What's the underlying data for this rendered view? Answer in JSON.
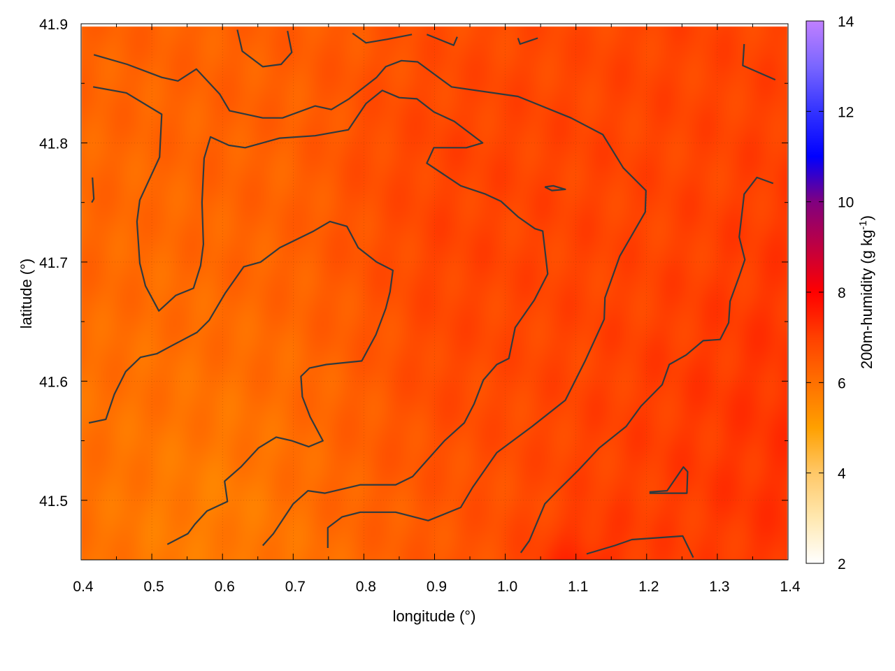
{
  "chart_data": {
    "type": "heatmap",
    "title": "",
    "xlabel": "longitude (°)",
    "ylabel": "latitude (°)",
    "colorbar_label": "200m-humidity (g kg",
    "colorbar_label_sup": "-1",
    "colorbar_label_end": ")",
    "xlim": [
      0.4,
      1.4
    ],
    "ylim": [
      41.45,
      41.9
    ],
    "clim": [
      2,
      14
    ],
    "xticks": [
      "0.4",
      "0.5",
      "0.6",
      "0.7",
      "0.8",
      "0.9",
      "1.0",
      "1.1",
      "1.2",
      "1.3",
      "1.4"
    ],
    "yticks": [
      "41.5",
      "41.6",
      "41.7",
      "41.8",
      "41.9"
    ],
    "cticks": [
      "2",
      "4",
      "6",
      "8",
      "10",
      "12",
      "14"
    ],
    "grid": true,
    "colormap": [
      [
        2,
        "#ffffff"
      ],
      [
        3,
        "#ffe8b0"
      ],
      [
        4,
        "#ffc868"
      ],
      [
        5,
        "#ffa000"
      ],
      [
        6,
        "#ff7000"
      ],
      [
        7,
        "#ff4000"
      ],
      [
        8,
        "#ff0000"
      ],
      [
        9,
        "#c00040"
      ],
      [
        10,
        "#800080"
      ],
      [
        11,
        "#0000ff"
      ],
      [
        12,
        "#3333ff"
      ],
      [
        13,
        "#7a66ff"
      ],
      [
        14,
        "#c080ff"
      ]
    ],
    "contour_color": "#2f3a3f",
    "z_lon": [
      0.4,
      0.5,
      0.6,
      0.7,
      0.8,
      0.9,
      1.0,
      1.1,
      1.2,
      1.3,
      1.4
    ],
    "z_lat": [
      41.9,
      41.8,
      41.7,
      41.6,
      41.5,
      41.45
    ],
    "z": [
      [
        6.3,
        6.3,
        6.3,
        6.4,
        6.5,
        6.7,
        6.8,
        6.8,
        6.9,
        6.9,
        6.9
      ],
      [
        6.2,
        6.2,
        6.3,
        6.3,
        6.7,
        6.9,
        6.9,
        6.9,
        6.9,
        6.9,
        7.0
      ],
      [
        6.2,
        6.1,
        6.2,
        6.3,
        6.6,
        6.9,
        6.9,
        6.9,
        6.9,
        7.0,
        7.1
      ],
      [
        6.0,
        6.0,
        6.0,
        6.1,
        6.4,
        6.8,
        6.8,
        6.9,
        7.0,
        7.1,
        7.2
      ],
      [
        6.0,
        5.8,
        5.7,
        6.0,
        6.3,
        6.5,
        6.7,
        6.9,
        7.0,
        7.1,
        7.2
      ],
      [
        6.0,
        5.8,
        5.8,
        5.9,
        6.2,
        6.5,
        6.7,
        7.4,
        7.0,
        7.0,
        7.2
      ]
    ],
    "contours": [
      [
        [
          0.418,
          41.874
        ],
        [
          0.465,
          41.866
        ],
        [
          0.514,
          41.855
        ],
        [
          0.537,
          41.852
        ],
        [
          0.563,
          41.862
        ],
        [
          0.596,
          41.841
        ],
        [
          0.61,
          41.827
        ],
        [
          0.657,
          41.821
        ],
        [
          0.685,
          41.821
        ],
        [
          0.731,
          41.831
        ],
        [
          0.754,
          41.828
        ],
        [
          0.779,
          41.837
        ],
        [
          0.818,
          41.855
        ],
        [
          0.831,
          41.864
        ],
        [
          0.853,
          41.869
        ],
        [
          0.876,
          41.868
        ],
        [
          0.924,
          41.847
        ],
        [
          1.018,
          41.839
        ],
        [
          1.093,
          41.821
        ],
        [
          1.138,
          41.807
        ],
        [
          1.167,
          41.779
        ],
        [
          1.199,
          41.76
        ],
        [
          1.198,
          41.742
        ],
        [
          1.162,
          41.705
        ],
        [
          1.141,
          41.67
        ],
        [
          1.14,
          41.652
        ],
        [
          1.113,
          41.617
        ],
        [
          1.085,
          41.584
        ],
        [
          1.038,
          41.562
        ],
        [
          0.988,
          41.54
        ],
        [
          0.954,
          41.511
        ],
        [
          0.937,
          41.494
        ],
        [
          0.891,
          41.483
        ],
        [
          0.845,
          41.49
        ],
        [
          0.795,
          41.49
        ],
        [
          0.769,
          41.486
        ],
        [
          0.749,
          41.477
        ],
        [
          0.749,
          41.46
        ]
      ],
      [
        [
          0.417,
          41.847
        ],
        [
          0.464,
          41.842
        ],
        [
          0.514,
          41.824
        ],
        [
          0.511,
          41.788
        ],
        [
          0.483,
          41.752
        ],
        [
          0.479,
          41.734
        ],
        [
          0.483,
          41.699
        ],
        [
          0.491,
          41.68
        ],
        [
          0.51,
          41.659
        ],
        [
          0.534,
          41.672
        ],
        [
          0.559,
          41.678
        ],
        [
          0.569,
          41.697
        ],
        [
          0.573,
          41.715
        ],
        [
          0.571,
          41.75
        ],
        [
          0.574,
          41.787
        ],
        [
          0.583,
          41.805
        ],
        [
          0.609,
          41.798
        ],
        [
          0.632,
          41.796
        ],
        [
          0.681,
          41.804
        ],
        [
          0.731,
          41.806
        ],
        [
          0.778,
          41.811
        ],
        [
          0.803,
          41.833
        ],
        [
          0.826,
          41.844
        ],
        [
          0.85,
          41.838
        ],
        [
          0.875,
          41.837
        ],
        [
          0.899,
          41.826
        ],
        [
          0.928,
          41.818
        ],
        [
          0.968,
          41.8
        ],
        [
          0.945,
          41.796
        ],
        [
          0.899,
          41.796
        ],
        [
          0.889,
          41.783
        ],
        [
          0.937,
          41.764
        ],
        [
          0.972,
          41.757
        ],
        [
          0.994,
          41.751
        ],
        [
          1.018,
          41.738
        ],
        [
          1.042,
          41.728
        ],
        [
          1.053,
          41.726
        ],
        [
          1.06,
          41.69
        ],
        [
          1.041,
          41.668
        ],
        [
          1.014,
          41.645
        ],
        [
          1.005,
          41.619
        ],
        [
          0.988,
          41.614
        ],
        [
          0.969,
          41.601
        ],
        [
          0.956,
          41.581
        ],
        [
          0.942,
          41.565
        ],
        [
          0.914,
          41.55
        ],
        [
          0.884,
          41.53
        ],
        [
          0.869,
          41.52
        ],
        [
          0.845,
          41.513
        ],
        [
          0.795,
          41.513
        ],
        [
          0.745,
          41.506
        ],
        [
          0.721,
          41.508
        ],
        [
          0.7,
          41.497
        ],
        [
          0.672,
          41.472
        ],
        [
          0.657,
          41.462
        ]
      ],
      [
        [
          0.411,
          41.565
        ],
        [
          0.435,
          41.568
        ],
        [
          0.447,
          41.589
        ],
        [
          0.463,
          41.608
        ],
        [
          0.484,
          41.62
        ],
        [
          0.507,
          41.623
        ],
        [
          0.529,
          41.63
        ],
        [
          0.564,
          41.641
        ],
        [
          0.581,
          41.651
        ],
        [
          0.604,
          41.674
        ],
        [
          0.63,
          41.696
        ],
        [
          0.654,
          41.7
        ],
        [
          0.681,
          41.712
        ],
        [
          0.729,
          41.726
        ],
        [
          0.752,
          41.734
        ],
        [
          0.776,
          41.73
        ],
        [
          0.792,
          41.712
        ],
        [
          0.818,
          41.7
        ],
        [
          0.841,
          41.693
        ],
        [
          0.837,
          41.675
        ],
        [
          0.831,
          41.661
        ],
        [
          0.817,
          41.639
        ],
        [
          0.797,
          41.617
        ],
        [
          0.747,
          41.614
        ],
        [
          0.723,
          41.611
        ],
        [
          0.711,
          41.604
        ],
        [
          0.713,
          41.587
        ],
        [
          0.724,
          41.57
        ],
        [
          0.742,
          41.55
        ],
        [
          0.722,
          41.545
        ],
        [
          0.698,
          41.55
        ],
        [
          0.676,
          41.553
        ],
        [
          0.651,
          41.544
        ],
        [
          0.626,
          41.528
        ],
        [
          0.603,
          41.516
        ],
        [
          0.607,
          41.499
        ],
        [
          0.578,
          41.491
        ],
        [
          0.561,
          41.48
        ],
        [
          0.551,
          41.472
        ],
        [
          0.522,
          41.463
        ]
      ],
      [
        [
          1.022,
          41.456
        ],
        [
          1.034,
          41.466
        ],
        [
          1.056,
          41.497
        ],
        [
          1.074,
          41.508
        ],
        [
          1.103,
          41.525
        ],
        [
          1.133,
          41.544
        ],
        [
          1.171,
          41.562
        ],
        [
          1.192,
          41.579
        ],
        [
          1.222,
          41.597
        ],
        [
          1.232,
          41.614
        ],
        [
          1.256,
          41.622
        ],
        [
          1.28,
          41.634
        ],
        [
          1.304,
          41.635
        ],
        [
          1.316,
          41.649
        ],
        [
          1.318,
          41.667
        ],
        [
          1.331,
          41.688
        ],
        [
          1.339,
          41.702
        ],
        [
          1.331,
          41.721
        ],
        [
          1.338,
          41.757
        ],
        [
          1.356,
          41.771
        ],
        [
          1.379,
          41.766
        ]
      ],
      [
        [
          1.115,
          41.455
        ],
        [
          1.155,
          41.462
        ],
        [
          1.179,
          41.467
        ],
        [
          1.251,
          41.47
        ],
        [
          1.266,
          41.452
        ]
      ],
      [
        [
          1.204,
          41.507
        ],
        [
          1.229,
          41.508
        ],
        [
          1.252,
          41.528
        ],
        [
          1.258,
          41.524
        ],
        [
          1.257,
          41.506
        ],
        [
          1.204,
          41.506
        ]
      ],
      [
        [
          0.621,
          41.895
        ],
        [
          0.628,
          41.877
        ],
        [
          0.657,
          41.864
        ],
        [
          0.683,
          41.866
        ],
        [
          0.698,
          41.876
        ],
        [
          0.692,
          41.894
        ]
      ],
      [
        [
          0.784,
          41.892
        ],
        [
          0.803,
          41.884
        ],
        [
          0.833,
          41.887
        ],
        [
          0.868,
          41.891
        ]
      ],
      [
        [
          0.889,
          41.891
        ],
        [
          0.902,
          41.888
        ],
        [
          0.927,
          41.882
        ],
        [
          0.932,
          41.889
        ]
      ],
      [
        [
          1.018,
          41.888
        ],
        [
          1.021,
          41.883
        ],
        [
          1.046,
          41.888
        ]
      ],
      [
        [
          1.338,
          41.883
        ],
        [
          1.336,
          41.865
        ],
        [
          1.382,
          41.853
        ]
      ],
      [
        [
          1.056,
          41.763
        ],
        [
          1.068,
          41.764
        ],
        [
          1.085,
          41.761
        ],
        [
          1.066,
          41.76
        ],
        [
          1.056,
          41.763
        ]
      ],
      [
        [
          0.416,
          41.771
        ],
        [
          0.418,
          41.753
        ],
        [
          0.415,
          41.75
        ]
      ]
    ]
  }
}
